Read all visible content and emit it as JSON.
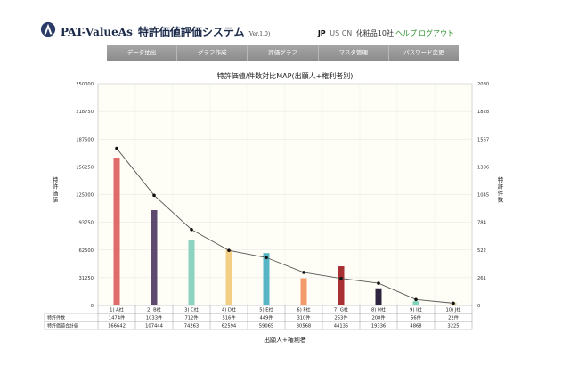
{
  "header": {
    "brand": "PAT-ValueAs",
    "subtitle": "特許価値評価システム",
    "version": "(Ver.1.0)",
    "country": "JP",
    "langs": "US CN",
    "company": "化粧品10社",
    "help": "ヘルプ",
    "logout": "ログアウト"
  },
  "nav": {
    "tabs": [
      "データ抽出",
      "グラフ作成",
      "評価グラフ",
      "マスタ管理",
      "パスワード変更"
    ]
  },
  "chart_data": {
    "type": "bar",
    "title": "特許価値/件数対比MAP(出願人+権利者別)",
    "xlabel": "出願人+権利者",
    "ylabel": "特許価値",
    "y2label": "特許件数",
    "ylim": [
      0,
      250000
    ],
    "y2lim": [
      0,
      2080
    ],
    "yticks": [
      "0",
      "31250",
      "62500",
      "93750",
      "125000",
      "156250",
      "187500",
      "218750",
      "250000"
    ],
    "y2ticks": [
      "0",
      "261",
      "522",
      "784",
      "1045",
      "1306",
      "1567",
      "1828",
      "2080"
    ],
    "categories": [
      "1) A社",
      "2) B社",
      "3) C社",
      "4) D社",
      "5) E社",
      "6) F社",
      "7) G社",
      "8) H社",
      "9) I社",
      "10) J社"
    ],
    "bar_colors": [
      "#e06b6b",
      "#5e4a6e",
      "#8ed2c0",
      "#f3cf86",
      "#56b6c6",
      "#f29a6a",
      "#a82f32",
      "#2e2440",
      "#7fd3b8",
      "#e8d29a"
    ],
    "series": [
      {
        "name": "特許件数",
        "values": [
          "1474件",
          "1033件",
          "712件",
          "516件",
          "449件",
          "310件",
          "253件",
          "208件",
          "56件",
          "22件"
        ],
        "numeric": [
          1474,
          1033,
          712,
          516,
          449,
          310,
          253,
          208,
          56,
          22
        ]
      },
      {
        "name": "特許価値合計値",
        "values": [
          166642,
          107444,
          74263,
          62594,
          59065,
          30568,
          44135,
          19336,
          4868,
          3225
        ]
      }
    ],
    "grid": true,
    "line_color": "#555555"
  }
}
